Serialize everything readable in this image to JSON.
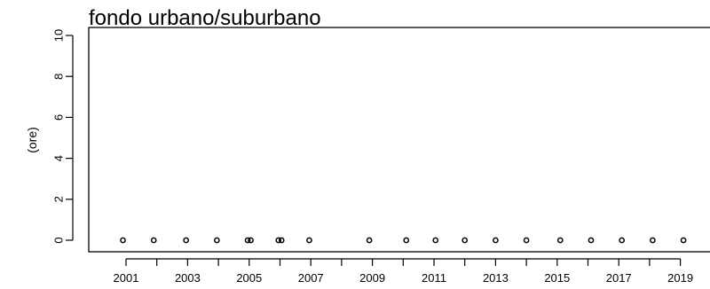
{
  "chart_data": {
    "type": "scatter",
    "title": "fondo urbano/suburbano",
    "xlabel": "",
    "ylabel": "(ore)",
    "ylim": [
      0,
      10
    ],
    "y_ticks": [
      0,
      2,
      4,
      6,
      8,
      10
    ],
    "xlim": [
      2000.8,
      2020
    ],
    "x_ticks": [
      2001,
      2002,
      2003,
      2004,
      2005,
      2006,
      2007,
      2008,
      2009,
      2010,
      2011,
      2012,
      2013,
      2014,
      2015,
      2016,
      2017,
      2018,
      2019
    ],
    "x_tick_labels": [
      "2001",
      "",
      "2003",
      "",
      "2005",
      "",
      "2007",
      "",
      "2009",
      "",
      "2011",
      "",
      "2013",
      "",
      "2015",
      "",
      "2017",
      "",
      "2019"
    ],
    "grid": false,
    "series": [
      {
        "x": [
          2000.9,
          2001.9,
          2002.95,
          2003.95,
          2004.95,
          2005.05,
          2005.95,
          2006.05,
          2006.95,
          2008.9,
          2010.1,
          2011.05,
          2012.0,
          2013.0,
          2014.0,
          2015.1,
          2016.1,
          2017.1,
          2018.1,
          2019.1
        ],
        "y": [
          0,
          0,
          0,
          0,
          0,
          0,
          0,
          0,
          0,
          0,
          0,
          0,
          0,
          0,
          0,
          0,
          0,
          0,
          0,
          0
        ]
      }
    ]
  }
}
